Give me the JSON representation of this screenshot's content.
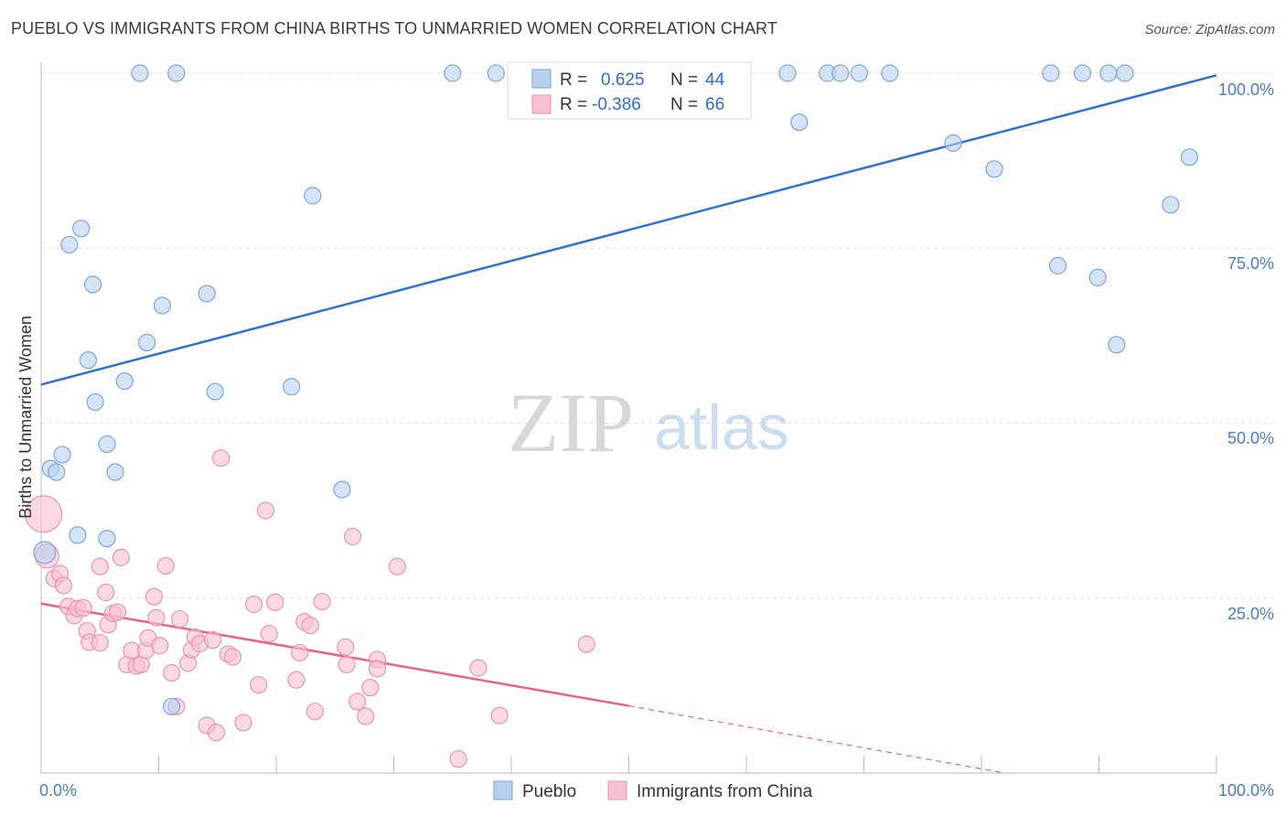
{
  "title": "PUEBLO VS IMMIGRANTS FROM CHINA BIRTHS TO UNMARRIED WOMEN CORRELATION CHART",
  "source": "Source: ZipAtlas.com",
  "watermark": {
    "zip": "ZIP",
    "atlas": "atlas"
  },
  "colors": {
    "blue_fill": "#b8d0f0",
    "blue_stroke": "#7da5dc",
    "blue_line": "#2f72d0",
    "pink_fill": "#f7c0d2",
    "pink_stroke": "#ec93b0",
    "pink_line": "#e8608e",
    "grid": "#dde1e8",
    "tick_text": "#4a7cc8"
  },
  "legend": {
    "rows": [
      {
        "r_label": "R =",
        "r_value": "0.625",
        "n_label": "N =",
        "n_value": "44"
      },
      {
        "r_label": "R =",
        "r_value": "-0.386",
        "n_label": "N =",
        "n_value": "66"
      }
    ]
  },
  "chart_data": {
    "type": "scatter",
    "title": "PUEBLO VS IMMIGRANTS FROM CHINA BIRTHS TO UNMARRIED WOMEN CORRELATION CHART",
    "xlabel": "",
    "ylabel": "Births to Unmarried Women",
    "xlim": [
      0,
      100
    ],
    "ylim": [
      0,
      100
    ],
    "x_tick_labels": [
      "0.0%",
      "100.0%"
    ],
    "y_tick_labels": [
      "25.0%",
      "50.0%",
      "75.0%",
      "100.0%"
    ],
    "y_ticks": [
      25,
      50,
      75,
      100
    ],
    "series": [
      {
        "name": "Pueblo",
        "r": 0.625,
        "n": 44,
        "trend": {
          "x0": 0,
          "y0": 55.5,
          "x1": 100,
          "y1": 99.7
        },
        "points": [
          [
            0.3,
            31.5
          ],
          [
            0.8,
            43.5
          ],
          [
            1.3,
            43
          ],
          [
            1.8,
            45.5
          ],
          [
            2.4,
            75.5
          ],
          [
            3.1,
            34
          ],
          [
            3.4,
            77.8
          ],
          [
            4.0,
            59
          ],
          [
            4.4,
            69.8
          ],
          [
            4.6,
            53
          ],
          [
            5.6,
            33.5
          ],
          [
            5.6,
            47
          ],
          [
            6.3,
            43
          ],
          [
            7.1,
            56
          ],
          [
            8.4,
            100
          ],
          [
            9.0,
            61.5
          ],
          [
            10.3,
            66.8
          ],
          [
            11.1,
            9.5
          ],
          [
            11.5,
            100
          ],
          [
            14.1,
            68.5
          ],
          [
            14.8,
            54.5
          ],
          [
            21.3,
            55.2
          ],
          [
            23.1,
            82.5
          ],
          [
            25.6,
            40.5
          ],
          [
            35.0,
            100
          ],
          [
            38.7,
            100
          ],
          [
            41.0,
            100
          ],
          [
            63.5,
            100
          ],
          [
            64.5,
            93
          ],
          [
            66.9,
            100
          ],
          [
            68.0,
            100
          ],
          [
            69.6,
            100
          ],
          [
            72.2,
            100
          ],
          [
            77.6,
            90
          ],
          [
            81.1,
            86.3
          ],
          [
            85.9,
            100
          ],
          [
            86.5,
            72.5
          ],
          [
            88.6,
            100
          ],
          [
            89.9,
            70.8
          ],
          [
            90.8,
            100
          ],
          [
            91.5,
            61.2
          ],
          [
            92.2,
            100
          ],
          [
            96.1,
            81.2
          ],
          [
            97.7,
            88
          ]
        ]
      },
      {
        "name": "Immigrants from China",
        "r": -0.386,
        "n": 66,
        "trend": {
          "x0": 0,
          "y0": 24.2,
          "x1": 50,
          "y1": 9.6,
          "dash_x1": 82,
          "dash_y1": 0
        },
        "points": [
          [
            0.2,
            37
          ],
          [
            0.5,
            31
          ],
          [
            1.1,
            27.8
          ],
          [
            1.6,
            28.5
          ],
          [
            1.9,
            26.8
          ],
          [
            2.3,
            23.8
          ],
          [
            2.8,
            22.5
          ],
          [
            3.1,
            23.5
          ],
          [
            3.6,
            23.6
          ],
          [
            3.9,
            20.3
          ],
          [
            4.1,
            18.7
          ],
          [
            5.0,
            29.5
          ],
          [
            5.0,
            18.6
          ],
          [
            5.5,
            25.8
          ],
          [
            5.7,
            21.2
          ],
          [
            6.1,
            22.8
          ],
          [
            6.5,
            23
          ],
          [
            6.8,
            30.8
          ],
          [
            7.3,
            15.5
          ],
          [
            7.7,
            17.5
          ],
          [
            8.1,
            15.3
          ],
          [
            8.5,
            15.5
          ],
          [
            8.9,
            17.5
          ],
          [
            9.1,
            19.3
          ],
          [
            9.6,
            25.2
          ],
          [
            9.8,
            22.2
          ],
          [
            10.1,
            18.2
          ],
          [
            10.6,
            29.6
          ],
          [
            11.1,
            14.3
          ],
          [
            11.5,
            9.5
          ],
          [
            11.8,
            22
          ],
          [
            12.5,
            15.7
          ],
          [
            12.8,
            17.6
          ],
          [
            13.1,
            19.4
          ],
          [
            13.5,
            18.5
          ],
          [
            14.1,
            6.8
          ],
          [
            14.6,
            19
          ],
          [
            14.9,
            5.8
          ],
          [
            15.3,
            45
          ],
          [
            15.9,
            17
          ],
          [
            16.3,
            16.6
          ],
          [
            17.2,
            7.2
          ],
          [
            18.1,
            24.1
          ],
          [
            18.5,
            12.6
          ],
          [
            19.1,
            37.5
          ],
          [
            19.4,
            19.9
          ],
          [
            19.9,
            24.4
          ],
          [
            21.7,
            13.3
          ],
          [
            22.0,
            17.2
          ],
          [
            22.4,
            21.6
          ],
          [
            22.9,
            21.1
          ],
          [
            23.3,
            8.8
          ],
          [
            23.9,
            24.5
          ],
          [
            25.9,
            18
          ],
          [
            26.0,
            15.5
          ],
          [
            26.5,
            33.8
          ],
          [
            26.9,
            10.2
          ],
          [
            27.6,
            8.1
          ],
          [
            28.0,
            12.2
          ],
          [
            28.6,
            16.2
          ],
          [
            28.6,
            14.9
          ],
          [
            30.3,
            29.5
          ],
          [
            35.5,
            2
          ],
          [
            37.2,
            15
          ],
          [
            39.0,
            8.2
          ],
          [
            46.4,
            18.4
          ]
        ]
      }
    ]
  },
  "bottom_legend": [
    {
      "label": "Pueblo"
    },
    {
      "label": "Immigrants from China"
    }
  ]
}
